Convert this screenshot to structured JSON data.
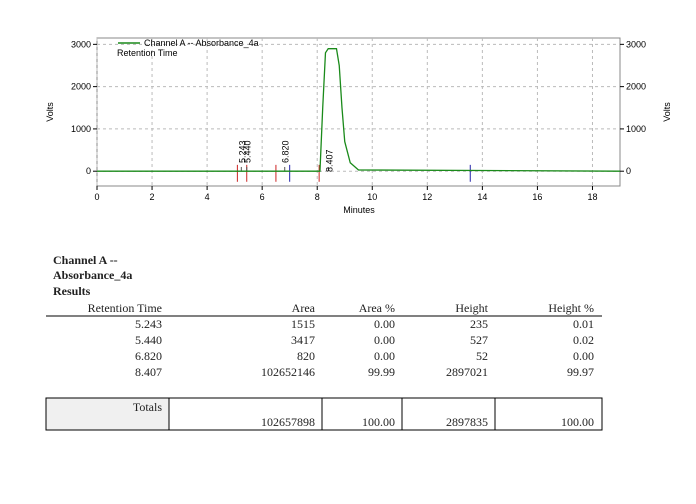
{
  "chart_data": {
    "type": "line",
    "legend": "Channel A -- Absorbance_4a",
    "annotation": "Retention Time",
    "y_label": "Volts",
    "y2_label": "Volts",
    "x_label": "Minutes",
    "xlim": [
      0,
      19
    ],
    "xticks": [
      0,
      2,
      4,
      6,
      8,
      10,
      12,
      14,
      16,
      18
    ],
    "ylim": [
      -350,
      3150
    ],
    "yticks": [
      0,
      1000,
      2000,
      3000
    ],
    "y2lim": [
      -350,
      3150
    ],
    "y2ticks": [
      0,
      1000,
      2000,
      3000
    ],
    "grid": true,
    "series": [
      {
        "name": "Channel A -- Absorbance_4a",
        "color": "#1a8a1a",
        "x": [
          0,
          8.1,
          8.2,
          8.3,
          8.4,
          8.7,
          8.8,
          8.9,
          9.0,
          9.2,
          9.5,
          19
        ],
        "values": [
          0,
          0,
          1500,
          2800,
          2897,
          2897,
          2500,
          1500,
          700,
          200,
          30,
          0
        ]
      }
    ],
    "peak_labels": [
      {
        "x": 5.243,
        "label": "5.243"
      },
      {
        "x": 5.44,
        "label": "5.440"
      },
      {
        "x": 6.82,
        "label": "6.820"
      },
      {
        "x": 8.407,
        "label": "8.407"
      }
    ],
    "markers": [
      {
        "x": 5.1,
        "color": "#cc2222"
      },
      {
        "x": 5.44,
        "color": "#cc2222"
      },
      {
        "x": 6.5,
        "color": "#cc2222"
      },
      {
        "x": 7.0,
        "color": "#2222aa"
      },
      {
        "x": 8.07,
        "color": "#cc2222"
      },
      {
        "x": 13.56,
        "color": "#2222aa"
      }
    ]
  },
  "report": {
    "heading": [
      "Channel A --",
      "Absorbance_4a",
      "Results"
    ],
    "table": {
      "columns": [
        "Retention Time",
        "Area",
        "Area %",
        "Height",
        "Height %"
      ],
      "rows": [
        [
          "5.243",
          "1515",
          "0.00",
          "235",
          "0.01"
        ],
        [
          "5.440",
          "3417",
          "0.00",
          "527",
          "0.02"
        ],
        [
          "6.820",
          "820",
          "0.00",
          "52",
          "0.00"
        ],
        [
          "8.407",
          "102652146",
          "99.99",
          "2897021",
          "99.97"
        ]
      ],
      "totals_label": "Totals",
      "totals": [
        "102657898",
        "100.00",
        "2897835",
        "100.00"
      ]
    }
  }
}
